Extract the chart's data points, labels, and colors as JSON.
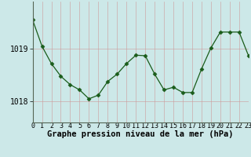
{
  "x": [
    0,
    1,
    2,
    3,
    4,
    5,
    6,
    7,
    8,
    9,
    10,
    11,
    12,
    13,
    14,
    15,
    16,
    17,
    18,
    19,
    20,
    21,
    22,
    23
  ],
  "y": [
    1019.55,
    1019.05,
    1018.72,
    1018.48,
    1018.32,
    1018.22,
    1018.05,
    1018.12,
    1018.38,
    1018.52,
    1018.72,
    1018.88,
    1018.87,
    1018.52,
    1018.22,
    1018.27,
    1018.17,
    1018.17,
    1018.62,
    1019.02,
    1019.32,
    1019.32,
    1019.32,
    1018.87
  ],
  "xlabel_ticks": [
    0,
    1,
    2,
    3,
    4,
    5,
    6,
    7,
    8,
    9,
    10,
    11,
    12,
    13,
    14,
    15,
    16,
    17,
    18,
    19,
    20,
    21,
    22,
    23
  ],
  "xlabel_labels": [
    "0",
    "1",
    "2",
    "3",
    "4",
    "5",
    "6",
    "7",
    "8",
    "9",
    "10",
    "11",
    "12",
    "13",
    "14",
    "15",
    "16",
    "17",
    "18",
    "19",
    "20",
    "21",
    "22",
    "23"
  ],
  "yticks": [
    1018,
    1019
  ],
  "ylabel_labels": [
    "1018",
    "1019"
  ],
  "ylim": [
    1017.6,
    1019.9
  ],
  "xlim": [
    0,
    23
  ],
  "xlabel": "Graphe pression niveau de la mer (hPa)",
  "line_color": "#1a5c1a",
  "marker_color": "#1a5c1a",
  "bg_color": "#cce8e8",
  "grid_color": "#aabbbb",
  "xlabel_fontsize": 7.5,
  "ytick_fontsize": 7,
  "xtick_fontsize": 6
}
